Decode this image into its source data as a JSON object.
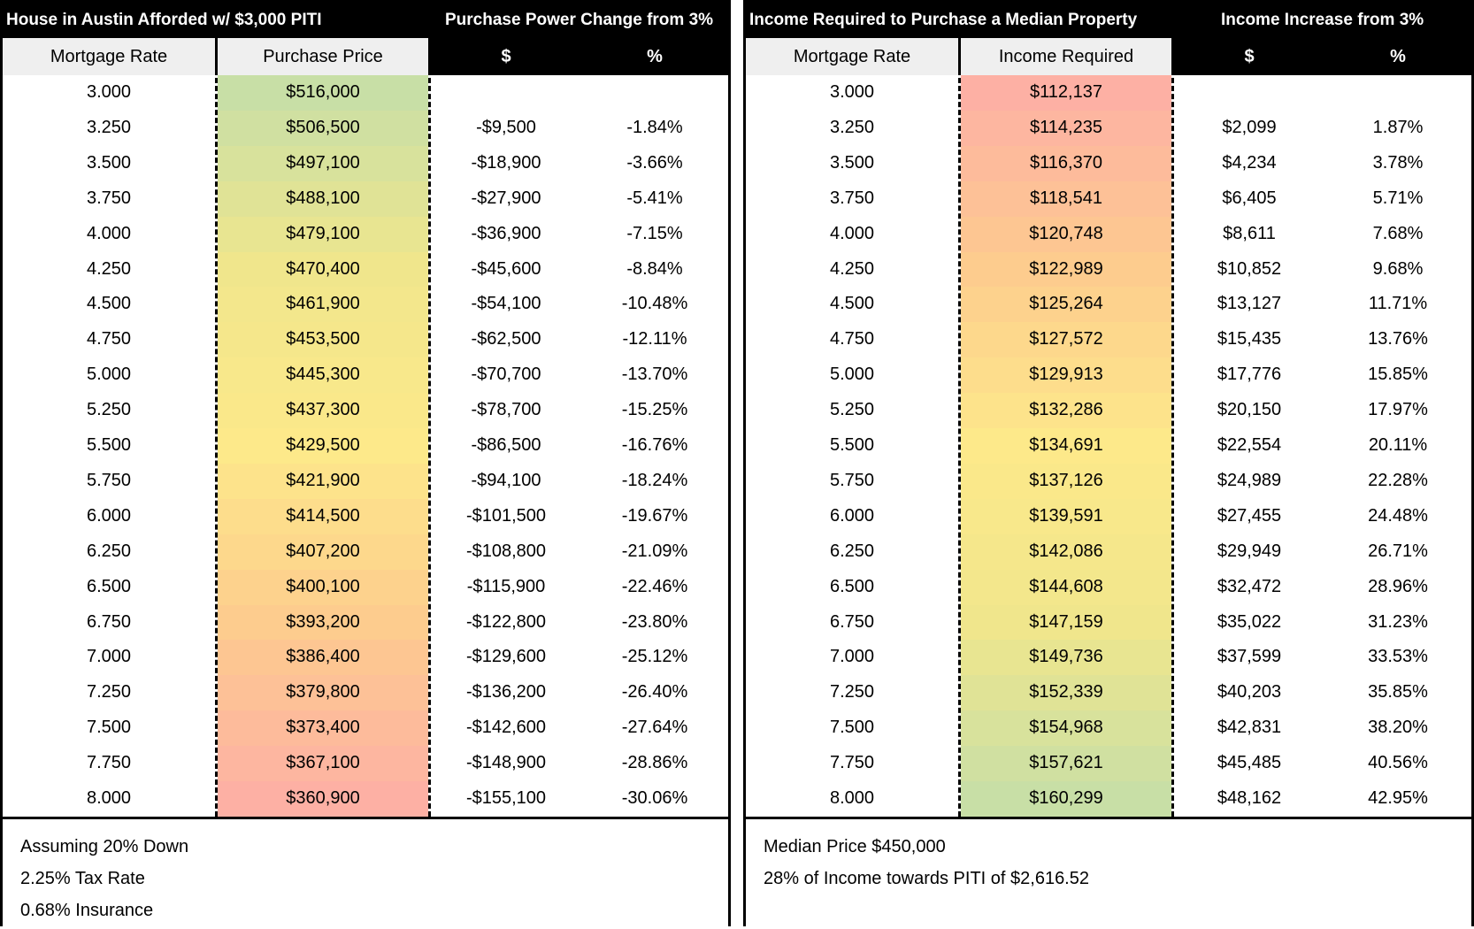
{
  "left": {
    "title": "House in Austin Afforded w/ $3,000 PITI",
    "change_title": "Purchase Power Change from 3%",
    "headers": [
      "Mortgage Rate",
      "Purchase Price",
      "$",
      "%"
    ],
    "rows": [
      {
        "rate": "3.000",
        "value": "$516,000",
        "d": "",
        "p": ""
      },
      {
        "rate": "3.250",
        "value": "$506,500",
        "d": "-$9,500",
        "p": "-1.84%"
      },
      {
        "rate": "3.500",
        "value": "$497,100",
        "d": "-$18,900",
        "p": "-3.66%"
      },
      {
        "rate": "3.750",
        "value": "$488,100",
        "d": "-$27,900",
        "p": "-5.41%"
      },
      {
        "rate": "4.000",
        "value": "$479,100",
        "d": "-$36,900",
        "p": "-7.15%"
      },
      {
        "rate": "4.250",
        "value": "$470,400",
        "d": "-$45,600",
        "p": "-8.84%"
      },
      {
        "rate": "4.500",
        "value": "$461,900",
        "d": "-$54,100",
        "p": "-10.48%"
      },
      {
        "rate": "4.750",
        "value": "$453,500",
        "d": "-$62,500",
        "p": "-12.11%"
      },
      {
        "rate": "5.000",
        "value": "$445,300",
        "d": "-$70,700",
        "p": "-13.70%"
      },
      {
        "rate": "5.250",
        "value": "$437,300",
        "d": "-$78,700",
        "p": "-15.25%"
      },
      {
        "rate": "5.500",
        "value": "$429,500",
        "d": "-$86,500",
        "p": "-16.76%"
      },
      {
        "rate": "5.750",
        "value": "$421,900",
        "d": "-$94,100",
        "p": "-18.24%"
      },
      {
        "rate": "6.000",
        "value": "$414,500",
        "d": "-$101,500",
        "p": "-19.67%"
      },
      {
        "rate": "6.250",
        "value": "$407,200",
        "d": "-$108,800",
        "p": "-21.09%"
      },
      {
        "rate": "6.500",
        "value": "$400,100",
        "d": "-$115,900",
        "p": "-22.46%"
      },
      {
        "rate": "6.750",
        "value": "$393,200",
        "d": "-$122,800",
        "p": "-23.80%"
      },
      {
        "rate": "7.000",
        "value": "$386,400",
        "d": "-$129,600",
        "p": "-25.12%"
      },
      {
        "rate": "7.250",
        "value": "$379,800",
        "d": "-$136,200",
        "p": "-26.40%"
      },
      {
        "rate": "7.500",
        "value": "$373,400",
        "d": "-$142,600",
        "p": "-27.64%"
      },
      {
        "rate": "7.750",
        "value": "$367,100",
        "d": "-$148,900",
        "p": "-28.86%"
      },
      {
        "rate": "8.000",
        "value": "$360,900",
        "d": "-$155,100",
        "p": "-30.06%"
      }
    ],
    "gradient_colors": [
      "#c8dfa6",
      "#f0e68c",
      "#fde98a",
      "#fdcc8e",
      "#fdb0a4"
    ],
    "notes": [
      "Assuming 20% Down",
      "2.25% Tax Rate",
      "0.68% Insurance"
    ]
  },
  "right": {
    "title": "Income Required to Purchase a Median Property",
    "change_title": "Income Increase from 3%",
    "headers": [
      "Mortgage Rate",
      "Income Required",
      "$",
      "%"
    ],
    "rows": [
      {
        "rate": "3.000",
        "value": "$112,137",
        "d": "",
        "p": ""
      },
      {
        "rate": "3.250",
        "value": "$114,235",
        "d": "$2,099",
        "p": "1.87%"
      },
      {
        "rate": "3.500",
        "value": "$116,370",
        "d": "$4,234",
        "p": "3.78%"
      },
      {
        "rate": "3.750",
        "value": "$118,541",
        "d": "$6,405",
        "p": "5.71%"
      },
      {
        "rate": "4.000",
        "value": "$120,748",
        "d": "$8,611",
        "p": "7.68%"
      },
      {
        "rate": "4.250",
        "value": "$122,989",
        "d": "$10,852",
        "p": "9.68%"
      },
      {
        "rate": "4.500",
        "value": "$125,264",
        "d": "$13,127",
        "p": "11.71%"
      },
      {
        "rate": "4.750",
        "value": "$127,572",
        "d": "$15,435",
        "p": "13.76%"
      },
      {
        "rate": "5.000",
        "value": "$129,913",
        "d": "$17,776",
        "p": "15.85%"
      },
      {
        "rate": "5.250",
        "value": "$132,286",
        "d": "$20,150",
        "p": "17.97%"
      },
      {
        "rate": "5.500",
        "value": "$134,691",
        "d": "$22,554",
        "p": "20.11%"
      },
      {
        "rate": "5.750",
        "value": "$137,126",
        "d": "$24,989",
        "p": "22.28%"
      },
      {
        "rate": "6.000",
        "value": "$139,591",
        "d": "$27,455",
        "p": "24.48%"
      },
      {
        "rate": "6.250",
        "value": "$142,086",
        "d": "$29,949",
        "p": "26.71%"
      },
      {
        "rate": "6.500",
        "value": "$144,608",
        "d": "$32,472",
        "p": "28.96%"
      },
      {
        "rate": "6.750",
        "value": "$147,159",
        "d": "$35,022",
        "p": "31.23%"
      },
      {
        "rate": "7.000",
        "value": "$149,736",
        "d": "$37,599",
        "p": "33.53%"
      },
      {
        "rate": "7.250",
        "value": "$152,339",
        "d": "$40,203",
        "p": "35.85%"
      },
      {
        "rate": "7.500",
        "value": "$154,968",
        "d": "$42,831",
        "p": "38.20%"
      },
      {
        "rate": "7.750",
        "value": "$157,621",
        "d": "$45,485",
        "p": "40.56%"
      },
      {
        "rate": "8.000",
        "value": "$160,299",
        "d": "$48,162",
        "p": "42.95%"
      }
    ],
    "gradient_colors": [
      "#fdb0a4",
      "#fdcc8e",
      "#fde98a",
      "#f0e68c",
      "#c8dfa6"
    ],
    "notes": [
      "Median Price $450,000",
      "28% of Income towards PITI of $2,616.52"
    ]
  }
}
